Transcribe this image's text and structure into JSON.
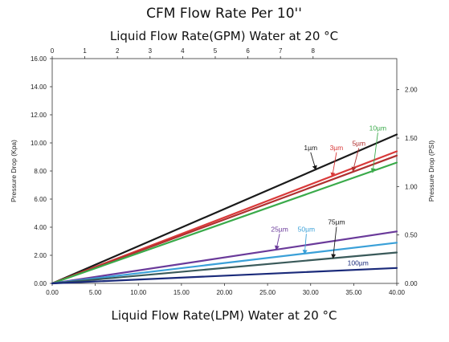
{
  "chart_data": {
    "type": "line",
    "title": "CFM  Flow Rate Per 10''",
    "top_axis_label": "Liquid Flow Rate(GPM) Water at 20 °C",
    "xlabel": "Liquid Flow Rate(LPM) Water at 20 °C",
    "ylabel": "Pressure Drop  (Kpa)",
    "y2label": "Pressure Drop  (PSI)",
    "xlim": [
      0,
      40
    ],
    "ylim": [
      0,
      16
    ],
    "x_ticks": [
      "0.00",
      "5.00",
      "10.00",
      "15.00",
      "20.00",
      "25.00",
      "30.00",
      "35.00",
      "40.00"
    ],
    "y_ticks": [
      "0.00",
      "2.00",
      "4.00",
      "6.00",
      "8.00",
      "10.00",
      "12.00",
      "14.00",
      "16.00"
    ],
    "top_ticks": [
      "0",
      "1",
      "2",
      "3",
      "4",
      "5",
      "6",
      "7",
      "8"
    ],
    "top_tick_values": [
      0,
      1,
      2,
      3,
      4,
      5,
      6,
      7,
      8
    ],
    "y2_ticks": [
      "0.00",
      "0.50",
      "1.00",
      "1.50",
      "2.00"
    ],
    "y2_tick_values": [
      0,
      0.5,
      1.0,
      1.5,
      2.0
    ],
    "grid": false,
    "series": [
      {
        "name": "1µm",
        "color": "#1a1a1a",
        "x": [
          0,
          40
        ],
        "y": [
          0,
          10.6
        ]
      },
      {
        "name": "3µm",
        "color": "#d93a3a",
        "x": [
          0,
          40
        ],
        "y": [
          0,
          9.4
        ]
      },
      {
        "name": "5µm",
        "color": "#b03030",
        "x": [
          0,
          40
        ],
        "y": [
          0,
          9.1
        ]
      },
      {
        "name": "10µm",
        "color": "#3aaa4a",
        "x": [
          0,
          40
        ],
        "y": [
          0,
          8.6
        ]
      },
      {
        "name": "25µm",
        "color": "#6a3a9a",
        "x": [
          0,
          40
        ],
        "y": [
          0,
          3.7
        ]
      },
      {
        "name": "50µm",
        "color": "#3aa0d8",
        "x": [
          0,
          40
        ],
        "y": [
          0,
          2.9
        ]
      },
      {
        "name": "75µm",
        "color": "#3a5a5a",
        "x": [
          0,
          40
        ],
        "y": [
          0,
          2.2
        ]
      },
      {
        "name": "100µm",
        "color": "#1a2a7a",
        "x": [
          0,
          40
        ],
        "y": [
          0,
          1.1
        ]
      }
    ],
    "annotations": [
      {
        "text": "1µm",
        "color": "#1a1a1a",
        "label_at": [
          30.0,
          9.5
        ],
        "arrow_to": [
          30.6,
          8.1
        ]
      },
      {
        "text": "3µm",
        "color": "#d93a3a",
        "label_at": [
          33.0,
          9.5
        ],
        "arrow_to": [
          32.5,
          7.6
        ]
      },
      {
        "text": "5µm",
        "color": "#b03030",
        "label_at": [
          35.6,
          9.8
        ],
        "arrow_to": [
          34.9,
          8.0
        ]
      },
      {
        "text": "10µm",
        "color": "#3aaa4a",
        "label_at": [
          37.8,
          10.9
        ],
        "arrow_to": [
          37.2,
          7.9
        ]
      },
      {
        "text": "25µm",
        "color": "#6a3a9a",
        "label_at": [
          26.4,
          3.7
        ],
        "arrow_to": [
          26.0,
          2.4
        ]
      },
      {
        "text": "50µm",
        "color": "#3aa0d8",
        "label_at": [
          29.5,
          3.7
        ],
        "arrow_to": [
          29.3,
          2.1
        ]
      },
      {
        "text": "75µm",
        "color": "#1a1a1a",
        "label_at": [
          33.0,
          4.2
        ],
        "arrow_to": [
          32.6,
          1.8
        ]
      },
      {
        "text": "100µm",
        "color": "#1a2a7a",
        "label_at": [
          35.5,
          1.3
        ],
        "arrow_to": null
      }
    ]
  }
}
